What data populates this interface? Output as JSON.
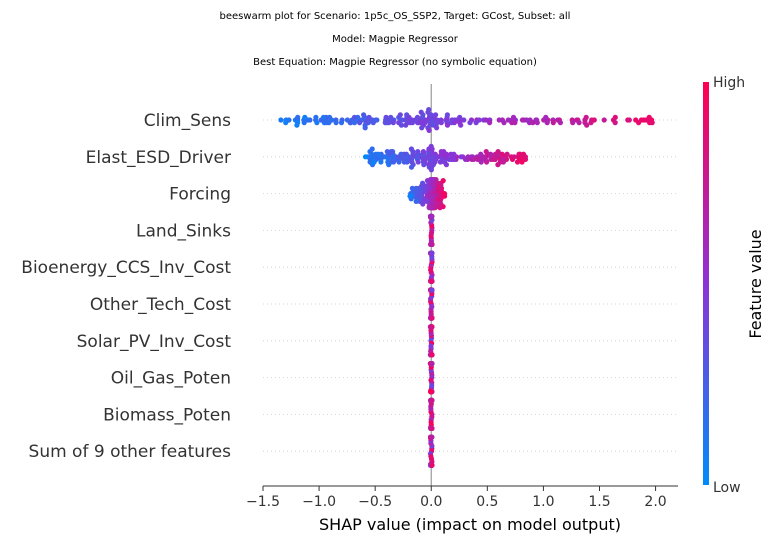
{
  "titles": [
    "beeswarm plot for Scenario: 1p5c_OS_SSP2, Target: GCost, Subset: all",
    "Model: Magpie Regressor",
    "Best Equation: Magpie Regressor (no symbolic equation)"
  ],
  "chart_data": {
    "type": "scatter",
    "subtype": "shap-beeswarm",
    "xlabel": "SHAP value (impact on model output)",
    "xlim": [
      -1.5,
      2.2
    ],
    "xticks": [
      -1.5,
      -1.0,
      -0.5,
      0.0,
      0.5,
      1.0,
      1.5,
      2.0
    ],
    "xtick_labels": [
      "−1.5",
      "−1.0",
      "−0.5",
      "0.0",
      "0.5",
      "1.0",
      "1.5",
      "2.0"
    ],
    "colorbar": {
      "label": "Feature value",
      "high": "High",
      "low": "Low"
    },
    "colors": {
      "low": "#008bfb",
      "mid": "#8c33d6",
      "high": "#ff0052",
      "zero_line": "#999999",
      "grid": "#cccccc"
    },
    "features": [
      {
        "name": "Clim_Sens",
        "range": [
          -1.35,
          2.05
        ],
        "spread": "wide"
      },
      {
        "name": "Elast_ESD_Driver",
        "range": [
          -0.6,
          0.9
        ],
        "spread": "medium"
      },
      {
        "name": "Forcing",
        "range": [
          -0.2,
          0.12
        ],
        "spread": "narrow"
      },
      {
        "name": "Land_Sinks",
        "range": [
          0,
          0
        ],
        "spread": "zero"
      },
      {
        "name": "Bioenergy_CCS_Inv_Cost",
        "range": [
          0,
          0
        ],
        "spread": "zero"
      },
      {
        "name": "Other_Tech_Cost",
        "range": [
          0,
          0
        ],
        "spread": "zero"
      },
      {
        "name": "Solar_PV_Inv_Cost",
        "range": [
          0,
          0
        ],
        "spread": "zero"
      },
      {
        "name": "Oil_Gas_Poten",
        "range": [
          0,
          0
        ],
        "spread": "zero"
      },
      {
        "name": "Biomass_Poten",
        "range": [
          0,
          0
        ],
        "spread": "zero"
      },
      {
        "name": "Sum of 9 other features",
        "range": [
          0,
          0
        ],
        "spread": "zero"
      }
    ]
  }
}
